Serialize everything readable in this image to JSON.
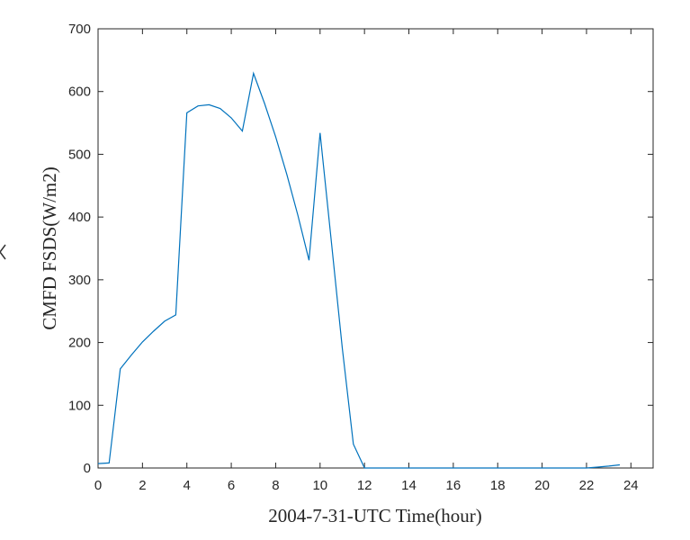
{
  "chart_data": {
    "type": "line",
    "title": "",
    "xlabel": "2004-7-31-UTC Time(hour)",
    "ylabel": "CMFD FSDS(W/m2)",
    "xlim": [
      0,
      25
    ],
    "ylim": [
      0,
      700
    ],
    "xticks": [
      0,
      2,
      4,
      6,
      8,
      10,
      12,
      14,
      16,
      18,
      20,
      22,
      24
    ],
    "yticks": [
      0,
      100,
      200,
      300,
      400,
      500,
      600,
      700
    ],
    "grid": false,
    "line_color": "#0072BD",
    "series": [
      {
        "x": [
          0,
          0.5,
          1,
          1.5,
          2,
          2.5,
          3,
          3.5,
          4,
          4.5,
          5,
          5.5,
          6,
          6.5,
          7,
          7.5,
          8,
          8.5,
          9,
          9.5,
          10,
          10.5,
          11,
          11.5,
          12,
          12.5,
          13,
          13.5,
          14,
          14.5,
          15,
          15.5,
          16,
          16.5,
          17,
          17.5,
          18,
          18.5,
          19,
          19.5,
          20,
          20.5,
          21,
          21.5,
          22,
          22.5,
          23,
          23.5
        ],
        "y": [
          7,
          8,
          158,
          180,
          201,
          218,
          234,
          244,
          566,
          577,
          579,
          573,
          558,
          537,
          629,
          581,
          528,
          468,
          403,
          331,
          534,
          364,
          191,
          38,
          0,
          0,
          0,
          0,
          0,
          0,
          0,
          0,
          0,
          0,
          0,
          0,
          0,
          0,
          0,
          0,
          0,
          0,
          0,
          0,
          0,
          1.5,
          3,
          5
        ]
      }
    ]
  }
}
